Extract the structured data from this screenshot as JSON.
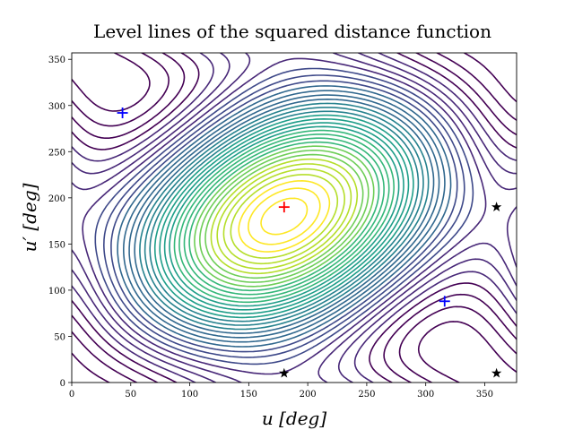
{
  "chart_data": {
    "type": "contour",
    "title": "Level lines of the squared distance function",
    "x_label": "u [deg]",
    "y_label": "u′ [deg]",
    "xlim": [
      0,
      377
    ],
    "ylim": [
      0,
      357
    ],
    "xticks": [
      0,
      50,
      100,
      150,
      200,
      250,
      300,
      350
    ],
    "yticks": [
      0,
      50,
      100,
      150,
      200,
      250,
      300,
      350
    ],
    "colormap": "viridis",
    "markers": [
      {
        "marker": "plus",
        "color": "#0000ff",
        "x": [
          43,
          316
        ],
        "y": [
          292,
          88
        ]
      },
      {
        "marker": "plus",
        "color": "#ff0000",
        "x": [
          180
        ],
        "y": [
          190
        ]
      },
      {
        "marker": "star",
        "color": "#000000",
        "x": [
          180,
          360,
          360
        ],
        "y": [
          10,
          190,
          10
        ]
      }
    ]
  }
}
